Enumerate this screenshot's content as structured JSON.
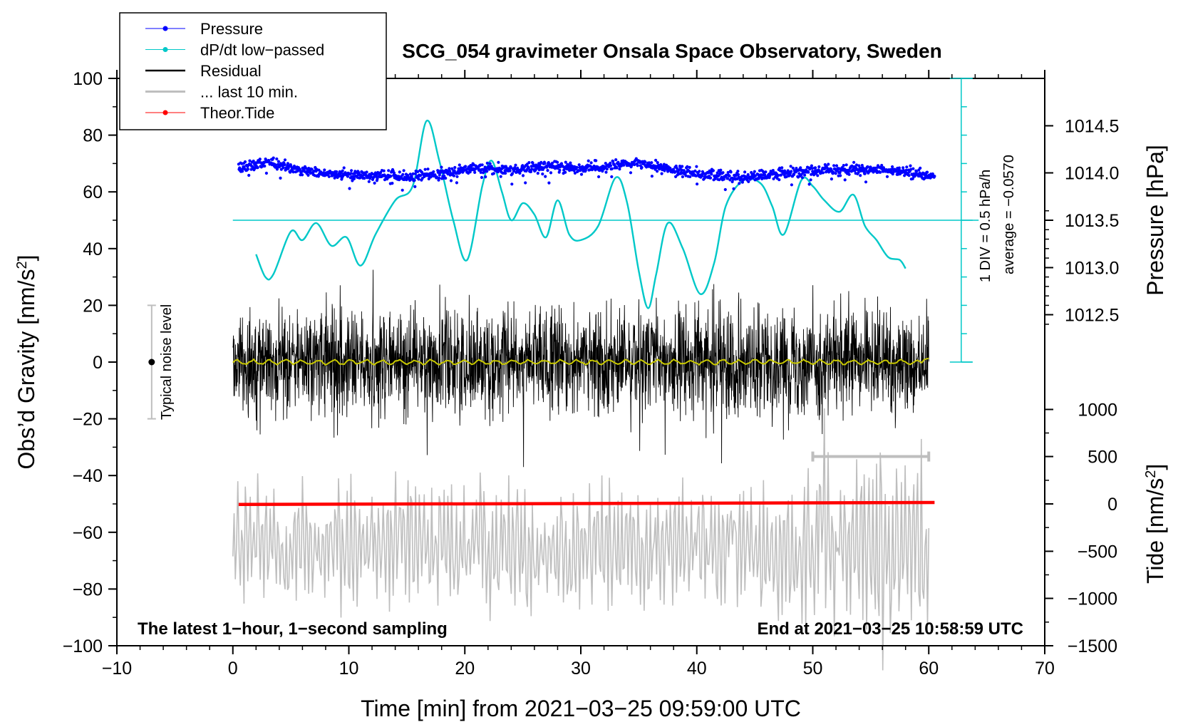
{
  "chart_data": {
    "type": "line",
    "title": "SCG_054 gravimeter Onsala Space Observatory, Sweden",
    "xlabel": "Time [min] from 2021−03−25 09:59:00 UTC",
    "ylabel_left": "Obs’d Gravity [nm/s",
    "ylabel_left_sup": "2",
    "ylabel_left_end": "]",
    "ylabel_right_pressure": "Pressure [hPa]",
    "ylabel_right_tide": "Tide [nm/s",
    "ylabel_right_tide_sup": "2",
    "ylabel_right_tide_end": "]",
    "xlim": [
      -10,
      70
    ],
    "ylim": [
      -100,
      100
    ],
    "x_ticks": [
      {
        "value": -10,
        "label": "−10"
      },
      {
        "value": 0,
        "label": "0"
      },
      {
        "value": 10,
        "label": "10"
      },
      {
        "value": 20,
        "label": "20"
      },
      {
        "value": 30,
        "label": "30"
      },
      {
        "value": 40,
        "label": "40"
      },
      {
        "value": 50,
        "label": "50"
      },
      {
        "value": 60,
        "label": "60"
      },
      {
        "value": 70,
        "label": "70"
      }
    ],
    "y_ticks": [
      {
        "value": 100,
        "label": "100"
      },
      {
        "value": 80,
        "label": "80"
      },
      {
        "value": 60,
        "label": "60"
      },
      {
        "value": 40,
        "label": "40"
      },
      {
        "value": 20,
        "label": "20"
      },
      {
        "value": 0,
        "label": "0"
      },
      {
        "value": -20,
        "label": "−20"
      },
      {
        "value": -40,
        "label": "−40"
      },
      {
        "value": -60,
        "label": "−60"
      },
      {
        "value": -80,
        "label": "−80"
      },
      {
        "value": -100,
        "label": "−100"
      }
    ],
    "pressure_ticks": [
      {
        "value": 1014.5,
        "label": "1014.5",
        "y": 83.3
      },
      {
        "value": 1014.0,
        "label": "1014.0",
        "y": 66.7
      },
      {
        "value": 1013.5,
        "label": "1013.5",
        "y": 50.0
      },
      {
        "value": 1013.0,
        "label": "1013.0",
        "y": 33.3
      },
      {
        "value": 1012.5,
        "label": "1012.5",
        "y": 16.7
      }
    ],
    "tide_ticks": [
      {
        "value": 1000,
        "label": "1000",
        "y": -16.7
      },
      {
        "value": 500,
        "label": "500",
        "y": -33.3
      },
      {
        "value": 0,
        "label": "0",
        "y": -50.0
      },
      {
        "value": -500,
        "label": "−500",
        "y": -66.7
      },
      {
        "value": -1000,
        "label": "−1000",
        "y": -83.3
      },
      {
        "value": -1500,
        "label": "−1500",
        "y": -100.0
      }
    ],
    "legend": [
      {
        "label": "Pressure",
        "color": "#0000ff",
        "marker": true
      },
      {
        "label": "dP/dt low−passed",
        "color": "#00c8c8",
        "marker": true
      },
      {
        "label": "Residual",
        "color": "#000000",
        "marker": false
      },
      {
        "label": "... last 10 min.",
        "color": "#bebebe",
        "marker": false
      },
      {
        "label": "Theor.Tide",
        "color": "#ff0000",
        "marker": true
      }
    ],
    "series": [
      {
        "name": "Pressure",
        "color": "#0000ff",
        "x": [
          0.5,
          3,
          6,
          9,
          12,
          15,
          18,
          21,
          24,
          27,
          30,
          33,
          35,
          38,
          41,
          44,
          47,
          50,
          53,
          56,
          60.5
        ],
        "y_hpa": [
          1014.05,
          1014.12,
          1014.02,
          1013.98,
          1013.98,
          1013.95,
          1014.0,
          1014.05,
          1014.03,
          1014.07,
          1014.05,
          1014.08,
          1014.1,
          1014.03,
          1013.98,
          1013.95,
          1013.99,
          1014.02,
          1014.04,
          1014.03,
          1013.97
        ]
      },
      {
        "name": "dP/dt low-passed",
        "color": "#00c8c8",
        "x": [
          2,
          2.8,
          3.5,
          5,
          6,
          7.2,
          8.5,
          9.8,
          11,
          12.3,
          14,
          15.5,
          16.7,
          17.8,
          19,
          20.2,
          21.5,
          22.3,
          23.2,
          24,
          25,
          26,
          27,
          28,
          29,
          30,
          31.5,
          33,
          34,
          35,
          35.8,
          36.5,
          37.5,
          38.8,
          40.3,
          41.5,
          42.5,
          44,
          45.5,
          46.5,
          47.5,
          49,
          50,
          51,
          52.3,
          53.5,
          54.5,
          55.5,
          56.5,
          57.5,
          58
        ],
        "y": [
          38,
          30,
          31,
          46,
          43,
          49,
          41,
          44,
          34,
          45,
          57,
          62,
          85,
          71,
          50,
          36,
          62,
          71,
          60,
          50,
          56,
          52,
          44,
          57,
          45,
          43,
          48,
          65,
          56,
          32,
          19,
          31,
          49,
          40,
          24,
          35,
          55,
          64,
          63,
          55,
          45,
          64,
          62,
          57,
          53,
          59,
          48,
          43,
          37,
          36,
          33
        ],
        "average_line": 50
      },
      {
        "name": "Residual",
        "color": "#000000",
        "x_range": [
          0,
          60
        ],
        "typical_amplitude": 15,
        "extremes": [
          35,
          -37
        ]
      },
      {
        "name": "Residual smoothed",
        "color": "#c8c800",
        "x_range": [
          0,
          60
        ],
        "y_level": 0
      },
      {
        "name": "... last 10 min.",
        "color": "#bebebe",
        "x_range": [
          0,
          60
        ],
        "center": -65,
        "amplitude": 20
      },
      {
        "name": "Theor.Tide",
        "color": "#ff0000",
        "x": [
          0.5,
          60.5
        ],
        "y": [
          -50.2,
          -49.5
        ]
      }
    ],
    "annotations": {
      "noise_label": "Typical noise level",
      "noise_bar": [
        -20,
        20
      ],
      "scale_label": "1 DIV = 0.5 hPa/h",
      "average_label": "average = −0.0570",
      "left_note": "The latest 1−hour, 1−second sampling",
      "right_note": "End at 2021−03−25 10:58:59 UTC",
      "gray_scale_bar": {
        "x1": 50,
        "x2": 60,
        "y": -33.3
      }
    }
  }
}
